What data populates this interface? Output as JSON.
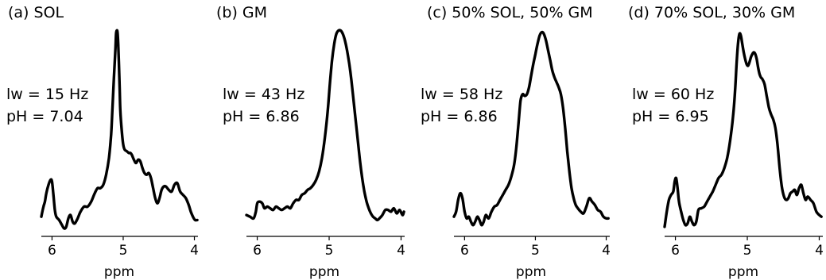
{
  "chart_data": [
    {
      "type": "line",
      "title": "(a) SOL",
      "xlabel": "ppm",
      "x_reversed": true,
      "xlim": [
        6.15,
        3.95
      ],
      "xticks": [
        6,
        5,
        4
      ],
      "ylim": [
        -0.3,
        5.8
      ],
      "annotations": [
        "lw = 15 Hz",
        "pH = 7.04"
      ],
      "series": [
        {
          "x": [
            6.15,
            6.12,
            6.1,
            6.08,
            6.05,
            6.02,
            6.0,
            5.98,
            5.96,
            5.94,
            5.9,
            5.86,
            5.83,
            5.8,
            5.77,
            5.74,
            5.71,
            5.68,
            5.64,
            5.6,
            5.55,
            5.5,
            5.45,
            5.4,
            5.36,
            5.32,
            5.28,
            5.24,
            5.2,
            5.17,
            5.15,
            5.13,
            5.11,
            5.1,
            5.09,
            5.08,
            5.07,
            5.06,
            5.05,
            5.04,
            5.02,
            5.0,
            4.98,
            4.95,
            4.92,
            4.9,
            4.88,
            4.85,
            4.82,
            4.79,
            4.76,
            4.73,
            4.7,
            4.67,
            4.64,
            4.61,
            4.58,
            4.55,
            4.52,
            4.49,
            4.46,
            4.43,
            4.4,
            4.36,
            4.32,
            4.28,
            4.24,
            4.2,
            4.16,
            4.12,
            4.08,
            4.05,
            4.02,
            3.99,
            3.96
          ],
          "y": [
            0.05,
            0.35,
            0.5,
            0.75,
            1.0,
            1.15,
            1.1,
            0.7,
            0.25,
            0.05,
            -0.05,
            -0.2,
            -0.3,
            -0.25,
            0.0,
            0.1,
            -0.1,
            -0.15,
            0.0,
            0.2,
            0.35,
            0.35,
            0.5,
            0.75,
            0.9,
            0.9,
            1.0,
            1.3,
            1.8,
            2.5,
            3.3,
            4.2,
            5.0,
            5.5,
            5.6,
            5.55,
            5.2,
            4.6,
            3.9,
            3.2,
            2.6,
            2.2,
            2.05,
            2.0,
            1.95,
            1.95,
            1.9,
            1.75,
            1.65,
            1.75,
            1.7,
            1.5,
            1.35,
            1.3,
            1.35,
            1.2,
            0.9,
            0.6,
            0.45,
            0.6,
            0.85,
            0.95,
            0.95,
            0.85,
            0.8,
            1.0,
            1.05,
            0.8,
            0.7,
            0.6,
            0.4,
            0.2,
            0.05,
            -0.05,
            -0.05
          ]
        }
      ]
    },
    {
      "type": "line",
      "title": "(b) GM",
      "xlabel": "ppm",
      "x_reversed": true,
      "xlim": [
        6.15,
        3.95
      ],
      "xticks": [
        6,
        5,
        4
      ],
      "ylim": [
        -0.3,
        5.8
      ],
      "annotations": [
        "lw = 43 Hz",
        "pH = 6.86"
      ],
      "series": [
        {
          "x": [
            6.15,
            6.1,
            6.05,
            6.02,
            6.0,
            5.97,
            5.93,
            5.9,
            5.86,
            5.82,
            5.78,
            5.74,
            5.7,
            5.66,
            5.62,
            5.58,
            5.54,
            5.5,
            5.46,
            5.42,
            5.38,
            5.34,
            5.3,
            5.26,
            5.22,
            5.18,
            5.14,
            5.1,
            5.06,
            5.02,
            4.99,
            4.96,
            4.93,
            4.9,
            4.87,
            4.84,
            4.81,
            4.78,
            4.75,
            4.72,
            4.69,
            4.66,
            4.63,
            4.6,
            4.57,
            4.54,
            4.51,
            4.48,
            4.45,
            4.42,
            4.39,
            4.36,
            4.33,
            4.3,
            4.26,
            4.22,
            4.18,
            4.14,
            4.1,
            4.06,
            4.02,
            3.98,
            3.96
          ],
          "y": [
            0.1,
            0.05,
            0.0,
            0.2,
            0.45,
            0.5,
            0.45,
            0.3,
            0.35,
            0.3,
            0.25,
            0.35,
            0.3,
            0.25,
            0.3,
            0.35,
            0.3,
            0.45,
            0.55,
            0.55,
            0.7,
            0.75,
            0.85,
            0.9,
            1.0,
            1.15,
            1.4,
            1.8,
            2.4,
            3.2,
            4.0,
            4.7,
            5.2,
            5.5,
            5.6,
            5.6,
            5.5,
            5.3,
            5.0,
            4.6,
            4.1,
            3.5,
            2.9,
            2.3,
            1.7,
            1.2,
            0.8,
            0.5,
            0.3,
            0.15,
            0.05,
            0.0,
            -0.05,
            0.0,
            0.1,
            0.25,
            0.25,
            0.2,
            0.3,
            0.15,
            0.25,
            0.1,
            0.2
          ]
        }
      ]
    },
    {
      "type": "line",
      "title": "(c) 50% SOL, 50% GM",
      "xlabel": "ppm",
      "x_reversed": true,
      "xlim": [
        6.15,
        3.95
      ],
      "xticks": [
        6,
        5,
        4
      ],
      "ylim": [
        -0.3,
        5.8
      ],
      "annotations": [
        "lw = 58 Hz",
        "pH = 6.86"
      ],
      "series": [
        {
          "x": [
            6.15,
            6.12,
            6.09,
            6.06,
            6.03,
            6.0,
            5.97,
            5.94,
            5.91,
            5.88,
            5.85,
            5.82,
            5.79,
            5.76,
            5.73,
            5.7,
            5.66,
            5.62,
            5.58,
            5.54,
            5.5,
            5.46,
            5.42,
            5.38,
            5.34,
            5.3,
            5.27,
            5.24,
            5.21,
            5.18,
            5.15,
            5.12,
            5.09,
            5.06,
            5.03,
            5.0,
            4.97,
            4.94,
            4.91,
            4.88,
            4.85,
            4.82,
            4.79,
            4.76,
            4.73,
            4.7,
            4.67,
            4.64,
            4.61,
            4.58,
            4.55,
            4.52,
            4.49,
            4.46,
            4.43,
            4.4,
            4.36,
            4.32,
            4.28,
            4.24,
            4.2,
            4.16,
            4.12,
            4.08,
            4.04,
            4.0,
            3.97
          ],
          "y": [
            0.05,
            0.2,
            0.55,
            0.75,
            0.6,
            0.2,
            0.0,
            0.05,
            -0.1,
            -0.2,
            -0.1,
            0.05,
            -0.05,
            -0.2,
            -0.1,
            0.1,
            0.0,
            0.2,
            0.35,
            0.4,
            0.55,
            0.7,
            0.85,
            1.0,
            1.25,
            1.6,
            2.1,
            2.8,
            3.5,
            3.7,
            3.65,
            3.7,
            3.9,
            4.25,
            4.6,
            4.9,
            5.2,
            5.45,
            5.55,
            5.5,
            5.3,
            5.0,
            4.7,
            4.4,
            4.2,
            4.05,
            3.9,
            3.7,
            3.3,
            2.7,
            2.0,
            1.4,
            0.9,
            0.6,
            0.4,
            0.3,
            0.2,
            0.15,
            0.35,
            0.6,
            0.5,
            0.4,
            0.25,
            0.2,
            0.05,
            0.0,
            0.0
          ]
        }
      ]
    },
    {
      "type": "line",
      "title": "(d) 70% SOL, 30% GM",
      "xlabel": "ppm",
      "x_reversed": true,
      "xlim": [
        6.15,
        3.95
      ],
      "xticks": [
        6,
        5,
        4
      ],
      "ylim": [
        -0.3,
        5.8
      ],
      "annotations": [
        "lw = 60 Hz",
        "pH = 6.95"
      ],
      "series": [
        {
          "x": [
            6.15,
            6.12,
            6.09,
            6.06,
            6.03,
            6.01,
            5.99,
            5.97,
            5.95,
            5.92,
            5.89,
            5.86,
            5.83,
            5.8,
            5.77,
            5.74,
            5.71,
            5.68,
            5.64,
            5.6,
            5.56,
            5.52,
            5.48,
            5.44,
            5.4,
            5.36,
            5.32,
            5.28,
            5.24,
            5.2,
            5.17,
            5.15,
            5.13,
            5.11,
            5.09,
            5.07,
            5.05,
            5.03,
            5.01,
            4.99,
            4.97,
            4.95,
            4.93,
            4.91,
            4.89,
            4.87,
            4.85,
            4.83,
            4.81,
            4.79,
            4.76,
            4.73,
            4.7,
            4.67,
            4.64,
            4.61,
            4.58,
            4.55,
            4.52,
            4.49,
            4.46,
            4.43,
            4.4,
            4.37,
            4.34,
            4.31,
            4.28,
            4.25,
            4.22,
            4.19,
            4.16,
            4.12,
            4.08,
            4.04,
            4.0,
            3.97
          ],
          "y": [
            -0.25,
            0.2,
            0.55,
            0.7,
            0.8,
            1.1,
            1.2,
            0.9,
            0.5,
            0.2,
            -0.05,
            -0.2,
            -0.15,
            0.05,
            -0.1,
            -0.2,
            -0.1,
            0.25,
            0.3,
            0.35,
            0.5,
            0.65,
            0.8,
            1.0,
            1.2,
            1.3,
            1.5,
            1.8,
            2.3,
            3.0,
            3.8,
            4.6,
            5.2,
            5.5,
            5.45,
            5.2,
            4.95,
            4.75,
            4.6,
            4.55,
            4.65,
            4.8,
            4.9,
            4.95,
            4.9,
            4.75,
            4.5,
            4.3,
            4.2,
            4.15,
            4.0,
            3.65,
            3.3,
            3.1,
            2.95,
            2.7,
            2.2,
            1.5,
            0.95,
            0.65,
            0.55,
            0.6,
            0.75,
            0.8,
            0.85,
            0.7,
            0.9,
            1.0,
            0.75,
            0.55,
            0.65,
            0.55,
            0.45,
            0.2,
            0.1,
            0.05
          ]
        }
      ]
    }
  ]
}
